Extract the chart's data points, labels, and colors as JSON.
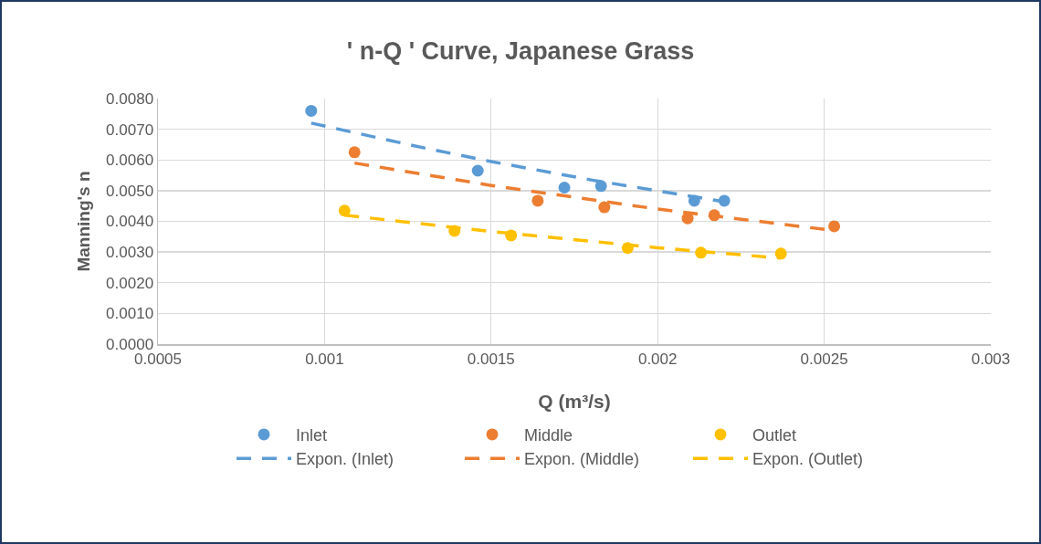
{
  "chart_data": {
    "type": "scatter",
    "title": "' n-Q ' Curve, Japanese Grass",
    "xlabel": "Q (m³/s)",
    "ylabel": "Manning's n",
    "xlim": [
      0.0005,
      0.003
    ],
    "xticks": [
      0.0005,
      0.001,
      0.0015,
      0.002,
      0.0025,
      0.003
    ],
    "ylim": [
      0,
      0.008
    ],
    "yticks": [
      {
        "value": 0,
        "label": "0.0000"
      },
      {
        "value": 0.001,
        "label": "0.0010"
      },
      {
        "value": 0.002,
        "label": "0.0020"
      },
      {
        "value": 0.003,
        "label": "0.0030"
      },
      {
        "value": 0.004,
        "label": "0.0040"
      },
      {
        "value": 0.005,
        "label": "0.0050"
      },
      {
        "value": 0.006,
        "label": "0.0060"
      },
      {
        "value": 0.007,
        "label": "0.0070"
      },
      {
        "value": 0.008,
        "label": "0.0080"
      }
    ],
    "grid": true,
    "legend": "bottom",
    "marker": "circle",
    "series": [
      {
        "name": "Inlet",
        "color": "#5b9bd5",
        "x": [
          0.00096,
          0.00146,
          0.00172,
          0.00183,
          0.00211,
          0.0022
        ],
        "values": [
          0.0076,
          0.00565,
          0.0051,
          0.00515,
          0.00467,
          0.00467
        ]
      },
      {
        "name": "Middle",
        "color": "#ed7d31",
        "x": [
          0.00109,
          0.00164,
          0.00184,
          0.00209,
          0.00217,
          0.00253
        ],
        "values": [
          0.00625,
          0.00467,
          0.00446,
          0.0041,
          0.0042,
          0.00384
        ]
      },
      {
        "name": "Outlet",
        "color": "#ffc000",
        "x": [
          0.00106,
          0.00139,
          0.00156,
          0.00191,
          0.00213,
          0.00237
        ],
        "values": [
          0.00435,
          0.00369,
          0.00354,
          0.00313,
          0.00298,
          0.00295
        ]
      },
      {
        "name": "Expon. (Inlet)",
        "type": "line",
        "marker": "none",
        "line_style": "dashed",
        "color": "#5b9bd5",
        "x": [
          0.00096,
          0.0013,
          0.0015,
          0.0018,
          0.0022
        ],
        "values": [
          0.0072,
          0.00639,
          0.00595,
          0.00535,
          0.00464
        ]
      },
      {
        "name": "Expon. (Middle)",
        "type": "line",
        "marker": "none",
        "line_style": "dashed",
        "color": "#ed7d31",
        "x": [
          0.00109,
          0.0015,
          0.002,
          0.00253
        ],
        "values": [
          0.0059,
          0.00517,
          0.0044,
          0.0037
        ]
      },
      {
        "name": "Expon. (Outlet)",
        "type": "line",
        "marker": "none",
        "line_style": "dashed",
        "color": "#ffc000",
        "x": [
          0.00106,
          0.0015,
          0.002,
          0.00237
        ],
        "values": [
          0.0042,
          0.00367,
          0.00314,
          0.0028
        ]
      }
    ]
  }
}
